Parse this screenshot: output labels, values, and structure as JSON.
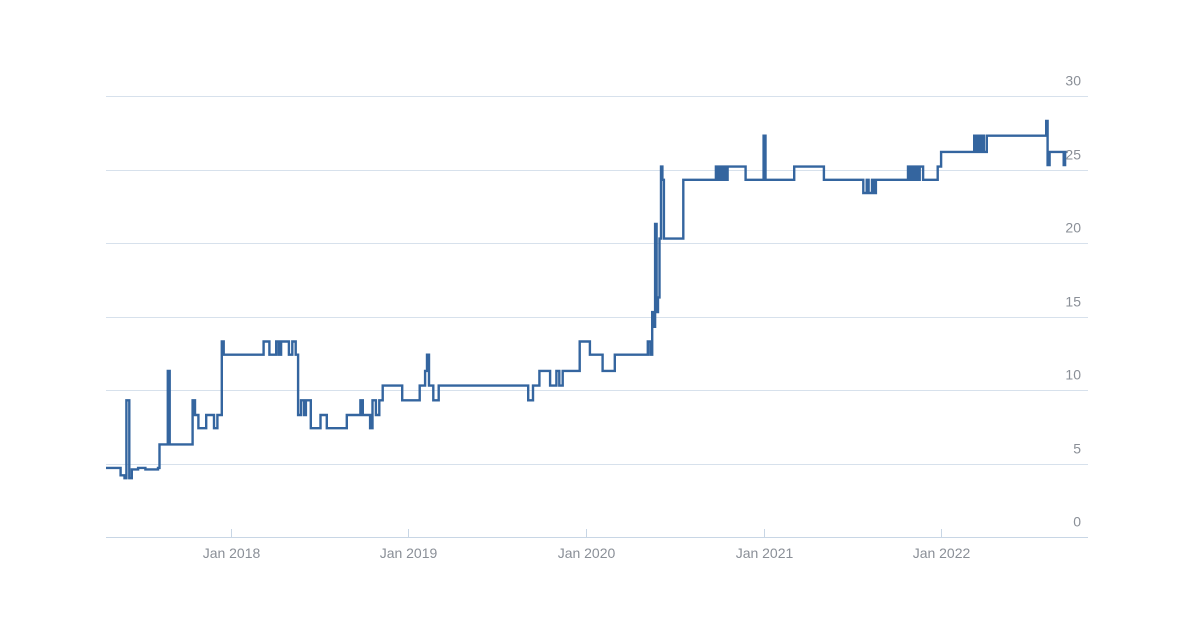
{
  "chart_data": {
    "type": "line",
    "step": true,
    "title": "",
    "xlabel": "",
    "ylabel": "",
    "x_axis": {
      "type": "date",
      "range": [
        "2017-04-20",
        "2022-10-30"
      ],
      "ticks": [
        {
          "value": "2018-01-01",
          "label": "Jan 2018"
        },
        {
          "value": "2019-01-01",
          "label": "Jan 2019"
        },
        {
          "value": "2020-01-01",
          "label": "Jan 2020"
        },
        {
          "value": "2021-01-01",
          "label": "Jan 2021"
        },
        {
          "value": "2022-01-01",
          "label": "Jan 2022"
        }
      ]
    },
    "y_axis": {
      "position": "right",
      "range": [
        0,
        30
      ],
      "ticks": [
        0,
        5,
        10,
        15,
        20,
        25,
        30
      ],
      "grid": true
    },
    "colors": {
      "series": "#34659f",
      "grid": "#d7e1ec",
      "axis": "#c8d6e5",
      "tick_label": "#8a8f97"
    },
    "legend": "none",
    "series": [
      {
        "points": [
          [
            "2017-04-20",
            4.7
          ],
          [
            "2017-05-15",
            4.7
          ],
          [
            "2017-05-20",
            4.2
          ],
          [
            "2017-05-28",
            4.0
          ],
          [
            "2017-06-01",
            9.3
          ],
          [
            "2017-06-07",
            4.0
          ],
          [
            "2017-06-12",
            4.6
          ],
          [
            "2017-06-25",
            4.7
          ],
          [
            "2017-07-10",
            4.6
          ],
          [
            "2017-08-05",
            4.7
          ],
          [
            "2017-08-08",
            6.3
          ],
          [
            "2017-08-25",
            11.3
          ],
          [
            "2017-08-29",
            6.3
          ],
          [
            "2017-10-15",
            9.3
          ],
          [
            "2017-10-20",
            8.3
          ],
          [
            "2017-10-27",
            7.4
          ],
          [
            "2017-11-12",
            8.3
          ],
          [
            "2017-11-28",
            7.4
          ],
          [
            "2017-12-05",
            8.3
          ],
          [
            "2017-12-14",
            13.3
          ],
          [
            "2017-12-18",
            12.4
          ],
          [
            "2018-03-10",
            13.3
          ],
          [
            "2018-03-22",
            12.4
          ],
          [
            "2018-04-05",
            13.3
          ],
          [
            "2018-04-10",
            12.4
          ],
          [
            "2018-04-15",
            13.3
          ],
          [
            "2018-05-01",
            12.4
          ],
          [
            "2018-05-08",
            13.3
          ],
          [
            "2018-05-15",
            12.4
          ],
          [
            "2018-05-20",
            8.3
          ],
          [
            "2018-05-26",
            9.3
          ],
          [
            "2018-06-01",
            8.3
          ],
          [
            "2018-06-05",
            9.3
          ],
          [
            "2018-06-15",
            7.4
          ],
          [
            "2018-07-05",
            8.3
          ],
          [
            "2018-07-18",
            7.4
          ],
          [
            "2018-08-28",
            8.3
          ],
          [
            "2018-09-25",
            9.3
          ],
          [
            "2018-09-30",
            8.3
          ],
          [
            "2018-10-15",
            7.4
          ],
          [
            "2018-10-20",
            9.3
          ],
          [
            "2018-10-27",
            8.3
          ],
          [
            "2018-11-03",
            9.3
          ],
          [
            "2018-11-10",
            10.3
          ],
          [
            "2018-12-20",
            9.3
          ],
          [
            "2019-01-25",
            10.3
          ],
          [
            "2019-02-05",
            11.3
          ],
          [
            "2019-02-09",
            12.4
          ],
          [
            "2019-02-13",
            10.3
          ],
          [
            "2019-02-22",
            9.3
          ],
          [
            "2019-03-05",
            10.3
          ],
          [
            "2019-09-05",
            9.3
          ],
          [
            "2019-09-15",
            10.3
          ],
          [
            "2019-09-28",
            11.3
          ],
          [
            "2019-10-20",
            10.3
          ],
          [
            "2019-11-02",
            11.3
          ],
          [
            "2019-11-08",
            10.3
          ],
          [
            "2019-11-15",
            11.3
          ],
          [
            "2019-12-20",
            13.3
          ],
          [
            "2020-01-10",
            12.4
          ],
          [
            "2020-02-05",
            11.3
          ],
          [
            "2020-03-01",
            12.4
          ],
          [
            "2020-05-08",
            13.3
          ],
          [
            "2020-05-13",
            12.4
          ],
          [
            "2020-05-17",
            15.3
          ],
          [
            "2020-05-20",
            14.3
          ],
          [
            "2020-05-23",
            21.3
          ],
          [
            "2020-05-26",
            15.3
          ],
          [
            "2020-05-29",
            16.3
          ],
          [
            "2020-06-01",
            20.3
          ],
          [
            "2020-06-04",
            25.2
          ],
          [
            "2020-06-07",
            24.3
          ],
          [
            "2020-06-10",
            20.3
          ],
          [
            "2020-07-20",
            24.3
          ],
          [
            "2020-09-25",
            25.2
          ],
          [
            "2020-09-29",
            24.3
          ],
          [
            "2020-10-03",
            25.2
          ],
          [
            "2020-10-07",
            24.3
          ],
          [
            "2020-10-11",
            25.2
          ],
          [
            "2020-10-15",
            24.3
          ],
          [
            "2020-10-19",
            25.2
          ],
          [
            "2020-11-25",
            24.3
          ],
          [
            "2021-01-01",
            27.3
          ],
          [
            "2021-01-05",
            24.3
          ],
          [
            "2021-03-05",
            25.2
          ],
          [
            "2021-05-05",
            24.3
          ],
          [
            "2021-07-25",
            23.4
          ],
          [
            "2021-08-01",
            24.3
          ],
          [
            "2021-08-05",
            23.4
          ],
          [
            "2021-08-12",
            24.3
          ],
          [
            "2021-08-16",
            23.4
          ],
          [
            "2021-08-20",
            24.3
          ],
          [
            "2021-10-25",
            25.2
          ],
          [
            "2021-10-29",
            24.3
          ],
          [
            "2021-11-02",
            25.2
          ],
          [
            "2021-11-06",
            24.3
          ],
          [
            "2021-11-10",
            25.2
          ],
          [
            "2021-11-14",
            24.3
          ],
          [
            "2021-11-18",
            25.2
          ],
          [
            "2021-11-25",
            24.3
          ],
          [
            "2021-12-25",
            25.2
          ],
          [
            "2022-01-01",
            26.2
          ],
          [
            "2022-03-10",
            27.3
          ],
          [
            "2022-03-14",
            26.2
          ],
          [
            "2022-03-18",
            27.3
          ],
          [
            "2022-03-22",
            26.2
          ],
          [
            "2022-03-26",
            27.3
          ],
          [
            "2022-03-30",
            26.2
          ],
          [
            "2022-04-05",
            27.3
          ],
          [
            "2022-08-05",
            28.3
          ],
          [
            "2022-08-08",
            25.3
          ],
          [
            "2022-08-12",
            26.2
          ],
          [
            "2022-09-10",
            25.3
          ],
          [
            "2022-09-13",
            26.2
          ],
          [
            "2022-09-18",
            26.2
          ]
        ]
      }
    ]
  }
}
